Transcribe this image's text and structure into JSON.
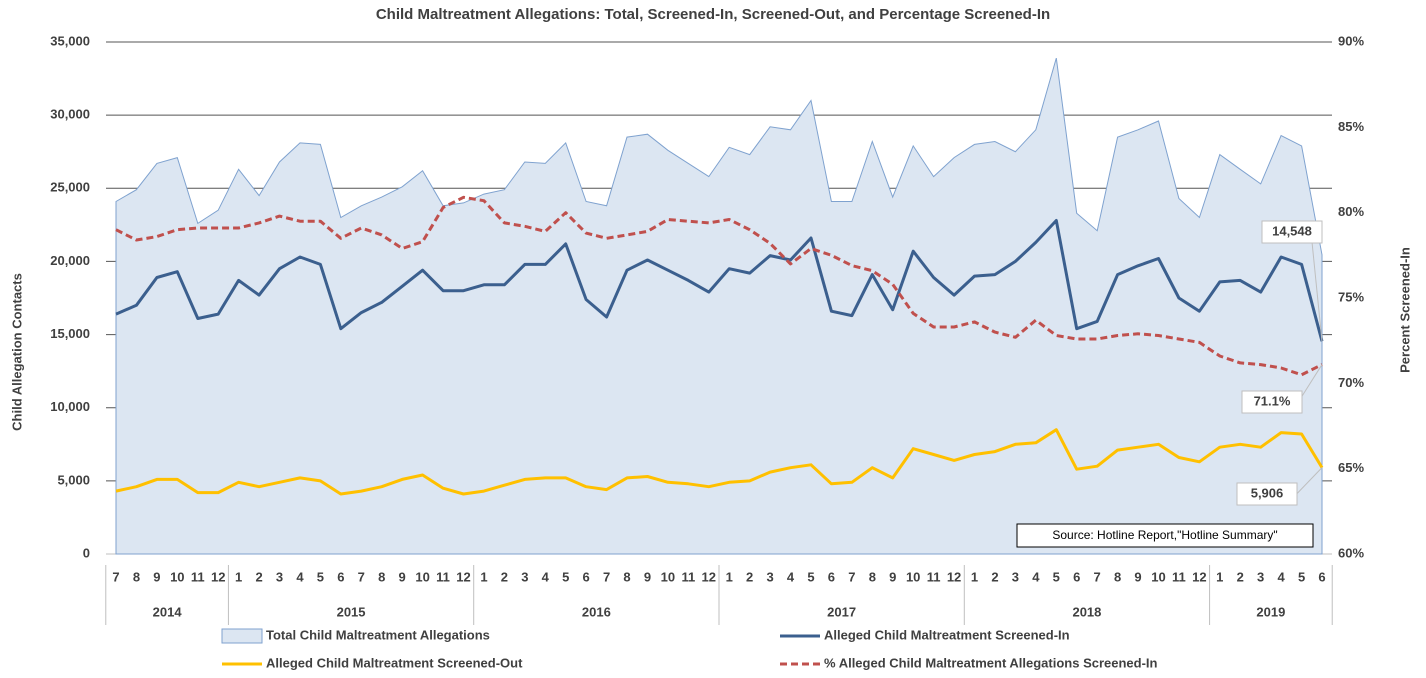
{
  "chart_data": {
    "type": "line",
    "title": "Child Maltreatment Allegations: Total, Screened-In, Screened-Out, and Percentage Screened-In",
    "ylabel": "Child Allegation Contacts",
    "y2label": "Percent Screened-In",
    "source": "Source: Hotline Report,\"Hotline Summary\"",
    "categories": [
      {
        "month": "7",
        "year": "2014"
      },
      {
        "month": "8",
        "year": "2014"
      },
      {
        "month": "9",
        "year": "2014"
      },
      {
        "month": "10",
        "year": "2014"
      },
      {
        "month": "11",
        "year": "2014"
      },
      {
        "month": "12",
        "year": "2014"
      },
      {
        "month": "1",
        "year": "2015"
      },
      {
        "month": "2",
        "year": "2015"
      },
      {
        "month": "3",
        "year": "2015"
      },
      {
        "month": "4",
        "year": "2015"
      },
      {
        "month": "5",
        "year": "2015"
      },
      {
        "month": "6",
        "year": "2015"
      },
      {
        "month": "7",
        "year": "2015"
      },
      {
        "month": "8",
        "year": "2015"
      },
      {
        "month": "9",
        "year": "2015"
      },
      {
        "month": "10",
        "year": "2015"
      },
      {
        "month": "11",
        "year": "2015"
      },
      {
        "month": "12",
        "year": "2015"
      },
      {
        "month": "1",
        "year": "2016"
      },
      {
        "month": "2",
        "year": "2016"
      },
      {
        "month": "3",
        "year": "2016"
      },
      {
        "month": "4",
        "year": "2016"
      },
      {
        "month": "5",
        "year": "2016"
      },
      {
        "month": "6",
        "year": "2016"
      },
      {
        "month": "7",
        "year": "2016"
      },
      {
        "month": "8",
        "year": "2016"
      },
      {
        "month": "9",
        "year": "2016"
      },
      {
        "month": "10",
        "year": "2016"
      },
      {
        "month": "11",
        "year": "2016"
      },
      {
        "month": "12",
        "year": "2016"
      },
      {
        "month": "1",
        "year": "2017"
      },
      {
        "month": "2",
        "year": "2017"
      },
      {
        "month": "3",
        "year": "2017"
      },
      {
        "month": "4",
        "year": "2017"
      },
      {
        "month": "5",
        "year": "2017"
      },
      {
        "month": "6",
        "year": "2017"
      },
      {
        "month": "7",
        "year": "2017"
      },
      {
        "month": "8",
        "year": "2017"
      },
      {
        "month": "9",
        "year": "2017"
      },
      {
        "month": "10",
        "year": "2017"
      },
      {
        "month": "11",
        "year": "2017"
      },
      {
        "month": "12",
        "year": "2017"
      },
      {
        "month": "1",
        "year": "2018"
      },
      {
        "month": "2",
        "year": "2018"
      },
      {
        "month": "3",
        "year": "2018"
      },
      {
        "month": "4",
        "year": "2018"
      },
      {
        "month": "5",
        "year": "2018"
      },
      {
        "month": "6",
        "year": "2018"
      },
      {
        "month": "7",
        "year": "2018"
      },
      {
        "month": "8",
        "year": "2018"
      },
      {
        "month": "9",
        "year": "2018"
      },
      {
        "month": "10",
        "year": "2018"
      },
      {
        "month": "11",
        "year": "2018"
      },
      {
        "month": "12",
        "year": "2018"
      },
      {
        "month": "1",
        "year": "2019"
      },
      {
        "month": "2",
        "year": "2019"
      },
      {
        "month": "3",
        "year": "2019"
      },
      {
        "month": "4",
        "year": "2019"
      },
      {
        "month": "5",
        "year": "2019"
      },
      {
        "month": "6",
        "year": "2019"
      }
    ],
    "series": [
      {
        "name": "Total Child Maltreatment Allegations",
        "kind": "area",
        "color": "#dce6f2",
        "stroke": "#7fa2cf",
        "values": [
          24100,
          24900,
          26700,
          27100,
          22600,
          23500,
          26300,
          24500,
          26800,
          28100,
          28000,
          23000,
          23800,
          24400,
          25100,
          26200,
          23800,
          24000,
          24600,
          24900,
          26800,
          26700,
          28100,
          24100,
          23800,
          28500,
          28700,
          27600,
          26700,
          25800,
          27800,
          27300,
          29200,
          29000,
          31000,
          24100,
          24100,
          28200,
          24400,
          27900,
          25800,
          27100,
          28000,
          28200,
          27500,
          29000,
          33900,
          23300,
          22100,
          28500,
          29000,
          29600,
          24300,
          23000,
          27300,
          26300,
          25300,
          28600,
          27900,
          20454
        ]
      },
      {
        "name": "Alleged Child Maltreatment Screened-In",
        "kind": "line",
        "color": "#3b5f8e",
        "values": [
          16400,
          17000,
          18900,
          19300,
          16100,
          16400,
          18700,
          17700,
          19500,
          20300,
          19800,
          15400,
          16500,
          17200,
          18300,
          19400,
          18000,
          18000,
          18400,
          18400,
          19800,
          19800,
          21200,
          17400,
          16200,
          19400,
          20100,
          19400,
          18700,
          17900,
          19500,
          19200,
          20400,
          20100,
          21600,
          16600,
          16300,
          19100,
          16700,
          20700,
          18900,
          17700,
          19000,
          19100,
          20000,
          21300,
          22800,
          15400,
          15900,
          19100,
          19700,
          20200,
          17500,
          16600,
          18600,
          18700,
          17900,
          20300,
          19800,
          14548
        ],
        "value_labels": [
          null,
          null,
          null,
          null,
          null,
          null,
          null,
          null,
          null,
          null,
          null,
          null,
          null,
          null,
          null,
          null,
          null,
          null,
          null,
          null,
          null,
          null,
          null,
          null,
          null,
          null,
          null,
          null,
          null,
          null,
          null,
          null,
          null,
          null,
          null,
          null,
          null,
          null,
          null,
          null,
          null,
          null,
          null,
          null,
          null,
          null,
          null,
          null,
          null,
          null,
          null,
          null,
          null,
          null,
          null,
          null,
          null,
          null,
          null,
          "14,548"
        ]
      },
      {
        "name": "Alleged Child Maltreatment Screened-Out",
        "kind": "line",
        "color": "#ffc000",
        "values": [
          4300,
          4600,
          5100,
          5100,
          4200,
          4200,
          4900,
          4600,
          4900,
          5200,
          5000,
          4100,
          4300,
          4600,
          5100,
          5400,
          4500,
          4100,
          4300,
          4700,
          5100,
          5200,
          5200,
          4600,
          4400,
          5200,
          5300,
          4900,
          4800,
          4600,
          4900,
          5000,
          5600,
          5900,
          6100,
          4800,
          4900,
          5900,
          5200,
          7200,
          6800,
          6400,
          6800,
          7000,
          7500,
          7600,
          8500,
          5800,
          6000,
          7100,
          7300,
          7500,
          6600,
          6300,
          7300,
          7500,
          7300,
          8300,
          8200,
          5906
        ],
        "value_labels": [
          null,
          null,
          null,
          null,
          null,
          null,
          null,
          null,
          null,
          null,
          null,
          null,
          null,
          null,
          null,
          null,
          null,
          null,
          null,
          null,
          null,
          null,
          null,
          null,
          null,
          null,
          null,
          null,
          null,
          null,
          null,
          null,
          null,
          null,
          null,
          null,
          null,
          null,
          null,
          null,
          null,
          null,
          null,
          null,
          null,
          null,
          null,
          null,
          null,
          null,
          null,
          null,
          null,
          null,
          null,
          null,
          null,
          null,
          null,
          "5,906"
        ]
      },
      {
        "name": "% Alleged Child Maltreatment Allegations Screened-In",
        "kind": "dashed",
        "axis": "y2",
        "color": "#c0504d",
        "values": [
          79.0,
          78.4,
          78.6,
          79.0,
          79.1,
          79.1,
          79.1,
          79.4,
          79.8,
          79.5,
          79.5,
          78.5,
          79.1,
          78.7,
          77.9,
          78.3,
          80.3,
          80.9,
          80.7,
          79.4,
          79.2,
          78.9,
          80.0,
          78.8,
          78.5,
          78.7,
          78.9,
          79.6,
          79.5,
          79.4,
          79.6,
          79.0,
          78.2,
          77.0,
          77.9,
          77.5,
          76.9,
          76.6,
          75.8,
          74.1,
          73.3,
          73.3,
          73.6,
          73.0,
          72.7,
          73.7,
          72.8,
          72.6,
          72.6,
          72.8,
          72.9,
          72.8,
          72.6,
          72.4,
          71.6,
          71.2,
          71.1,
          70.9,
          70.5,
          71.1
        ],
        "value_labels": [
          null,
          null,
          null,
          null,
          null,
          null,
          null,
          null,
          null,
          null,
          null,
          null,
          null,
          null,
          null,
          null,
          null,
          null,
          null,
          null,
          null,
          null,
          null,
          null,
          null,
          null,
          null,
          null,
          null,
          null,
          null,
          null,
          null,
          null,
          null,
          null,
          null,
          null,
          null,
          null,
          null,
          null,
          null,
          null,
          null,
          null,
          null,
          null,
          null,
          null,
          null,
          null,
          null,
          null,
          null,
          null,
          null,
          null,
          null,
          "71.1%"
        ]
      }
    ],
    "ylim": [
      0,
      35000
    ],
    "yticks": [
      0,
      {
        "value": 5000,
        "label": "5,000"
      },
      {
        "value": 10000,
        "label": "10,000"
      },
      {
        "value": 15000,
        "label": "15,000"
      },
      {
        "value": 20000,
        "label": "20,000"
      },
      {
        "value": 25000,
        "label": "25,000"
      },
      {
        "value": 30000,
        "label": "30,000"
      },
      {
        "value": 35000,
        "label": "35,000"
      }
    ],
    "y2lim": [
      60,
      90
    ],
    "y2ticks": [
      {
        "value": 60,
        "label": "60%"
      },
      {
        "value": 65,
        "label": "65%"
      },
      {
        "value": 70,
        "label": "70%"
      },
      {
        "value": 75,
        "label": "75%"
      },
      {
        "value": 80,
        "label": "80%"
      },
      {
        "value": 85,
        "label": "85%"
      },
      {
        "value": 90,
        "label": "90%"
      }
    ],
    "grid": true
  }
}
